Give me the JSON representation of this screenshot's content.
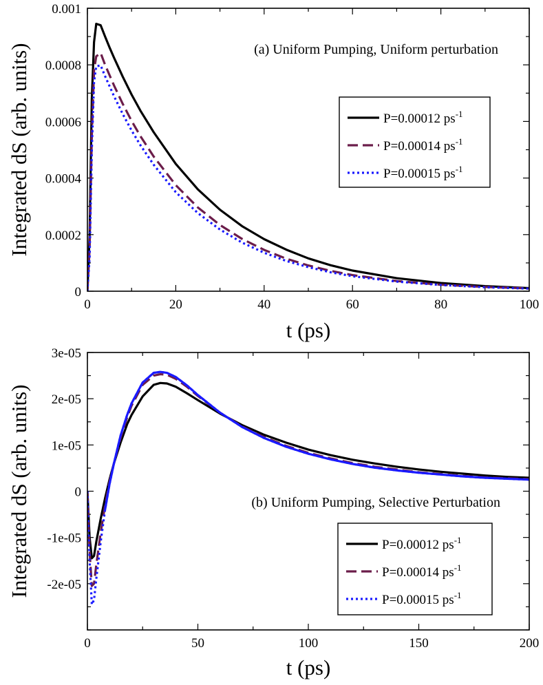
{
  "chart_data": [
    {
      "type": "line",
      "annotation": "(a) Uniform Pumping, Uniform perturbation",
      "xlabel": "t (ps)",
      "ylabel": "Integrated dS (arb. units)",
      "xlim": [
        0,
        100
      ],
      "ylim": [
        0,
        0.001
      ],
      "xticks": [
        0,
        20,
        40,
        60,
        80,
        100
      ],
      "xtick_labels": [
        "0",
        "20",
        "40",
        "60",
        "80",
        "100"
      ],
      "yticks": [
        0,
        0.0002,
        0.0004,
        0.0006,
        0.0008,
        0.001
      ],
      "ytick_labels": [
        "0",
        "0.0002",
        "0.0004",
        "0.0006",
        "0.0008",
        "0.001"
      ],
      "legend_position": "right",
      "series": [
        {
          "name": "P=0.00012 ps",
          "name_sup": "-1",
          "color": "#000000",
          "dash": "solid",
          "x": [
            0,
            0.5,
            1,
            1.5,
            2,
            3,
            4,
            5,
            6,
            8,
            10,
            12,
            15,
            20,
            25,
            30,
            35,
            40,
            45,
            50,
            55,
            60,
            70,
            80,
            90,
            100
          ],
          "y": [
            0,
            0.0002,
            0.00068,
            0.00088,
            0.000945,
            0.00094,
            0.0009,
            0.000862,
            0.000826,
            0.000758,
            0.000695,
            0.000638,
            0.000562,
            0.00045,
            0.00036,
            0.000288,
            0.00023,
            0.000184,
            0.000147,
            0.000116,
            9.2e-05,
            7.3e-05,
            4.6e-05,
            2.9e-05,
            1.8e-05,
            1.1e-05
          ]
        },
        {
          "name": "P=0.00014 ps",
          "name_sup": "-1",
          "color": "#6b1d4a",
          "dash": "dash",
          "x": [
            0,
            0.5,
            1,
            1.5,
            2,
            3,
            4,
            5,
            6,
            8,
            10,
            12,
            15,
            20,
            25,
            30,
            35,
            40,
            45,
            50,
            55,
            60,
            70,
            80,
            90,
            100
          ],
          "y": [
            0,
            0.00015,
            0.00055,
            0.00078,
            0.00083,
            0.000842,
            0.0008,
            0.000764,
            0.000728,
            0.000662,
            0.000602,
            0.000548,
            0.000476,
            0.000375,
            0.000296,
            0.000234,
            0.000185,
            0.000146,
            0.000115,
            9.1e-05,
            7.2e-05,
            5.7e-05,
            3.6e-05,
            2.3e-05,
            1.5e-05,
            1e-05
          ]
        },
        {
          "name": "P=0.00015 ps",
          "name_sup": "-1",
          "color": "#1a1aff",
          "dash": "dot",
          "x": [
            0,
            0.5,
            1,
            1.5,
            2,
            3,
            4,
            5,
            6,
            8,
            10,
            12,
            15,
            20,
            25,
            30,
            35,
            40,
            45,
            50,
            55,
            60,
            70,
            80,
            90,
            100
          ],
          "y": [
            0,
            0.00012,
            0.0005,
            0.00074,
            0.000795,
            0.000798,
            0.00076,
            0.000725,
            0.00069,
            0.000626,
            0.000568,
            0.000516,
            0.000447,
            0.00035,
            0.000276,
            0.000218,
            0.000172,
            0.000136,
            0.000107,
            8.5e-05,
            6.7e-05,
            5.3e-05,
            3.4e-05,
            2.2e-05,
            1.4e-05,
            9e-06
          ]
        }
      ]
    },
    {
      "type": "line",
      "annotation": "(b) Uniform Pumping, Selective Perturbation",
      "xlabel": "t (ps)",
      "ylabel": "Integrated dS (arb. units)",
      "xlim": [
        0,
        200
      ],
      "ylim": [
        -3e-05,
        3e-05
      ],
      "xticks": [
        0,
        50,
        100,
        150,
        200
      ],
      "xtick_labels": [
        "0",
        "50",
        "100",
        "150",
        "200"
      ],
      "yticks": [
        -2e-05,
        -1e-05,
        0,
        1e-05,
        2e-05,
        3e-05
      ],
      "ytick_labels": [
        "-2e-05",
        "-1e-05",
        "0",
        "1e-05",
        "2e-05",
        "3e-05"
      ],
      "legend_position": "bottom-right",
      "series": [
        {
          "name": "P=0.00012 ps",
          "name_sup": "-1",
          "color": "#000000",
          "dash": "solid",
          "x": [
            0,
            1,
            2,
            3,
            4,
            6,
            8,
            10,
            12,
            15,
            18,
            20,
            25,
            30,
            33,
            36,
            40,
            45,
            50,
            60,
            70,
            80,
            90,
            100,
            110,
            120,
            130,
            140,
            150,
            160,
            170,
            180,
            190,
            200
          ],
          "y": [
            0,
            -1e-05,
            -1.45e-05,
            -1.4e-05,
            -1.1e-05,
            -6e-06,
            -1.5e-06,
            2.5e-06,
            6e-06,
            1.05e-05,
            1.45e-05,
            1.65e-05,
            2.05e-05,
            2.3e-05,
            2.34e-05,
            2.33e-05,
            2.26e-05,
            2.12e-05,
            1.97e-05,
            1.68e-05,
            1.43e-05,
            1.22e-05,
            1.05e-05,
            9e-06,
            7.8e-06,
            6.8e-06,
            6e-06,
            5.3e-06,
            4.7e-06,
            4.2e-06,
            3.8e-06,
            3.4e-06,
            3.1e-06,
            2.9e-06
          ]
        },
        {
          "name": "P=0.00014 ps",
          "name_sup": "-1",
          "color": "#6b1d4a",
          "dash": "dash",
          "x": [
            0,
            1,
            2,
            3,
            4,
            6,
            8,
            10,
            12,
            15,
            18,
            20,
            25,
            30,
            33,
            36,
            40,
            45,
            50,
            60,
            70,
            80,
            90,
            100,
            110,
            120,
            130,
            140,
            150,
            160,
            170,
            180,
            190,
            200
          ],
          "y": [
            0,
            -1.3e-05,
            -2.05e-05,
            -2e-05,
            -1.6e-05,
            -9e-06,
            -3e-06,
            2e-06,
            6e-06,
            1.15e-05,
            1.6e-05,
            1.85e-05,
            2.3e-05,
            2.5e-05,
            2.53e-05,
            2.52e-05,
            2.43e-05,
            2.26e-05,
            2.06e-05,
            1.7e-05,
            1.4e-05,
            1.17e-05,
            9.8e-06,
            8.3e-06,
            7.1e-06,
            6.1e-06,
            5.3e-06,
            4.7e-06,
            4.1e-06,
            3.7e-06,
            3.3e-06,
            3e-06,
            2.8e-06,
            2.6e-06
          ]
        },
        {
          "name": "P=0.00015 ps",
          "name_sup": "-1",
          "color": "#1a1aff",
          "dash": "dot",
          "x": [
            0,
            1,
            2,
            3,
            4,
            6,
            8,
            10,
            12,
            15,
            18,
            20,
            25,
            30,
            33,
            36,
            40,
            45,
            50,
            60,
            70,
            80,
            90,
            100,
            110,
            120,
            130,
            140,
            150,
            160,
            170,
            180,
            190,
            200
          ],
          "y": [
            0,
            -1.5e-05,
            -2.45e-05,
            -2.35e-05,
            -1.9e-05,
            -1.1e-05,
            -4e-06,
            1.5e-06,
            6e-06,
            1.2e-05,
            1.65e-05,
            1.9e-05,
            2.35e-05,
            2.56e-05,
            2.58e-05,
            2.56e-05,
            2.47e-05,
            2.29e-05,
            2.08e-05,
            1.7e-05,
            1.39e-05,
            1.15e-05,
            9.6e-06,
            8.1e-06,
            6.9e-06,
            5.9e-06,
            5.1e-06,
            4.5e-06,
            4e-06,
            3.6e-06,
            3.2e-06,
            2.9e-06,
            2.7e-06,
            2.5e-06
          ]
        },
        {
          "name": "",
          "color": "#1a1aff",
          "dash": "solid",
          "legend": false,
          "x": [
            8,
            10,
            12,
            15,
            18,
            20,
            25,
            30,
            33,
            36,
            40,
            45,
            50,
            60,
            70,
            80,
            90,
            100,
            110,
            120,
            130,
            140,
            150,
            160,
            170,
            180,
            190,
            200
          ],
          "y": [
            -4e-06,
            1.5e-06,
            6e-06,
            1.2e-05,
            1.65e-05,
            1.9e-05,
            2.35e-05,
            2.56e-05,
            2.58e-05,
            2.56e-05,
            2.47e-05,
            2.29e-05,
            2.08e-05,
            1.7e-05,
            1.39e-05,
            1.15e-05,
            9.6e-06,
            8.1e-06,
            6.9e-06,
            5.9e-06,
            5.1e-06,
            4.5e-06,
            4e-06,
            3.6e-06,
            3.2e-06,
            2.9e-06,
            2.7e-06,
            2.5e-06
          ]
        }
      ]
    }
  ]
}
